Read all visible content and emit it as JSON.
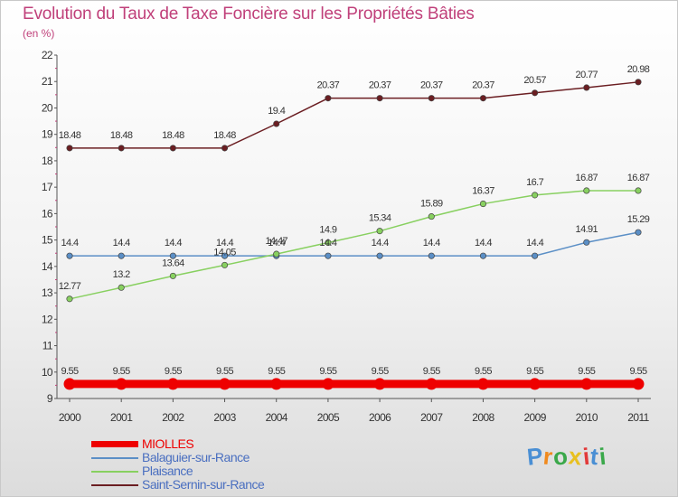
{
  "chart_data": {
    "type": "line",
    "title": "Evolution du Taux de Taxe Foncière sur les Propriétés Bâties",
    "subtitle": "(en %)",
    "xlabel": "",
    "ylabel": "",
    "categories": [
      "2000",
      "2001",
      "2002",
      "2003",
      "2004",
      "2005",
      "2006",
      "2007",
      "2008",
      "2009",
      "2010",
      "2011"
    ],
    "ylim": [
      9,
      22
    ],
    "yticks": [
      "9",
      "10",
      "11",
      "12",
      "13",
      "14",
      "15",
      "16",
      "17",
      "18",
      "19",
      "20",
      "21",
      "22"
    ],
    "grid": false,
    "legend_position": "bottom-left",
    "series": [
      {
        "name": "MIOLLES",
        "color": "#ee0000",
        "values": [
          9.55,
          9.55,
          9.55,
          9.55,
          9.55,
          9.55,
          9.55,
          9.55,
          9.55,
          9.55,
          9.55,
          9.55
        ],
        "labels": [
          "9.55",
          "9.55",
          "9.55",
          "9.55",
          "9.55",
          "9.55",
          "9.55",
          "9.55",
          "9.55",
          "9.55",
          "9.55",
          "9.55"
        ]
      },
      {
        "name": "Balaguier-sur-Rance",
        "color": "#5b8fc6",
        "values": [
          14.4,
          14.4,
          14.4,
          14.4,
          14.4,
          14.4,
          14.4,
          14.4,
          14.4,
          14.4,
          14.91,
          15.29
        ],
        "labels": [
          "14.4",
          "14.4",
          "14.4",
          "14.4",
          "14.4",
          "14.4",
          "14.4",
          "14.4",
          "14.4",
          "14.4",
          "14.91",
          "15.29"
        ]
      },
      {
        "name": "Plaisance",
        "color": "#88d060",
        "values": [
          12.77,
          13.2,
          13.64,
          14.05,
          14.47,
          14.9,
          15.34,
          15.89,
          16.37,
          16.7,
          16.87,
          16.87
        ],
        "labels": [
          "12.77",
          "13.2",
          "13.64",
          "14.05",
          "14.47",
          "14.9",
          "15.34",
          "15.89",
          "16.37",
          "16.7",
          "16.87",
          "16.87"
        ]
      },
      {
        "name": "Saint-Sernin-sur-Rance",
        "color": "#6b1e22",
        "values": [
          18.48,
          18.48,
          18.48,
          18.48,
          19.4,
          20.37,
          20.37,
          20.37,
          20.37,
          20.57,
          20.77,
          20.98
        ],
        "labels": [
          "18.48",
          "18.48",
          "18.48",
          "18.48",
          "19.4",
          "20.37",
          "20.37",
          "20.37",
          "20.37",
          "20.57",
          "20.77",
          "20.98"
        ]
      }
    ],
    "title_color": "#c0407a",
    "axis_color": "#555555"
  },
  "watermark": {
    "text": "Proxiti",
    "letter_colors": [
      "#4a8fd4",
      "#f08a1e",
      "#3aa84a",
      "#e8c020",
      "#e23a3a",
      "#4a8fd4",
      "#3aa84a"
    ]
  }
}
